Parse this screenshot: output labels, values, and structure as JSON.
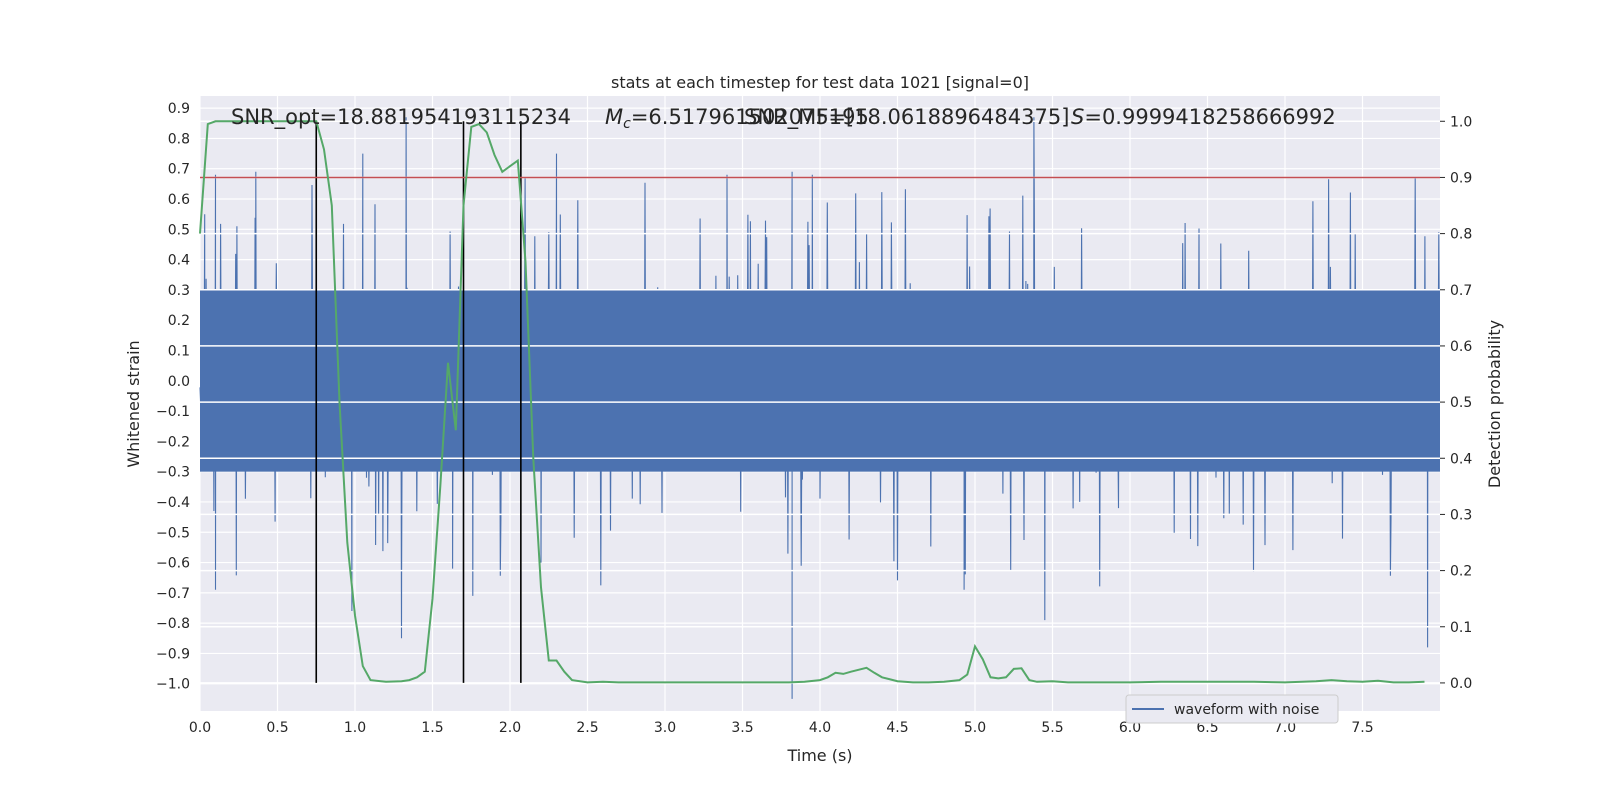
{
  "chart_data": {
    "type": "line",
    "title": "stats at each timestep for test data 1021 [signal=0]",
    "xlabel": "Time (s)",
    "ylabel_left": "Whitened strain",
    "ylabel_right": "Detection probability",
    "xlim": [
      0.0,
      8.0
    ],
    "ylim_left": [
      -1.09,
      0.94
    ],
    "ylim_right": [
      -0.05,
      1.045
    ],
    "x_ticks": [
      "0.0",
      "0.5",
      "1.0",
      "1.5",
      "2.0",
      "2.5",
      "3.0",
      "3.5",
      "4.0",
      "4.5",
      "5.0",
      "5.5",
      "6.0",
      "6.5",
      "7.0",
      "7.5"
    ],
    "y_left_ticks": [
      "0.9",
      "0.8",
      "0.7",
      "0.6",
      "0.5",
      "0.4",
      "0.3",
      "0.2",
      "0.1",
      "0.0",
      "−0.1",
      "−0.2",
      "−0.3",
      "−0.4",
      "−0.5",
      "−0.6",
      "−0.7",
      "−0.8",
      "−0.9",
      "−1.0"
    ],
    "y_right_ticks": [
      "0.0",
      "0.1",
      "0.2",
      "0.3",
      "0.4",
      "0.5",
      "0.6",
      "0.7",
      "0.8",
      "0.9",
      "1.0"
    ],
    "grid": true,
    "legend": {
      "position": "bottom-right",
      "entries": [
        "waveform with noise"
      ]
    },
    "annotations": {
      "snr_opt": "SNR_opt=18.881954193115234",
      "mc_prefix": "M",
      "mc_sub": "c",
      "mc_value": "=6.517961502075195",
      "snr_mf": "SNR_MF=[18.0618896484375]",
      "s_label": "S",
      "s_value": "=0.9999418258666992"
    },
    "threshold": {
      "axis": "right",
      "value": 0.9,
      "color": "#c44e52"
    },
    "vertical_markers": [
      0.75,
      1.7,
      2.07
    ],
    "series": [
      {
        "name": "waveform with noise",
        "axis": "left",
        "color": "#4c72b0",
        "style": "dense-noise",
        "sample_rate_hz": 256,
        "envelope_core": [
          -0.3,
          0.3
        ],
        "envelope_typical": [
          -0.6,
          0.6
        ],
        "spikes": [
          [
            0.03,
            0.55
          ],
          [
            0.1,
            0.68
          ],
          [
            0.36,
            0.69
          ],
          [
            1.05,
            0.75
          ],
          [
            1.33,
            0.87
          ],
          [
            2.3,
            0.75
          ],
          [
            3.4,
            0.68
          ],
          [
            3.82,
            0.69
          ],
          [
            3.95,
            0.68
          ],
          [
            5.38,
            0.87
          ],
          [
            0.1,
            -0.69
          ],
          [
            1.3,
            -0.85
          ],
          [
            1.63,
            -0.62
          ],
          [
            1.76,
            -0.71
          ],
          [
            3.82,
            -1.05
          ],
          [
            4.93,
            -0.69
          ],
          [
            5.45,
            -0.79
          ],
          [
            7.92,
            -0.88
          ],
          [
            0.98,
            -0.76
          ],
          [
            2.2,
            -0.6
          ]
        ]
      },
      {
        "name": "",
        "axis": "right",
        "color": "#55a868",
        "x": [
          0.0,
          0.05,
          0.1,
          0.15,
          0.2,
          0.25,
          0.3,
          0.35,
          0.4,
          0.45,
          0.5,
          0.55,
          0.6,
          0.65,
          0.7,
          0.75,
          0.8,
          0.85,
          0.9,
          0.95,
          1.0,
          1.05,
          1.1,
          1.2,
          1.3,
          1.35,
          1.4,
          1.45,
          1.5,
          1.55,
          1.6,
          1.65,
          1.7,
          1.75,
          1.8,
          1.85,
          1.9,
          1.95,
          2.0,
          2.05,
          2.1,
          2.15,
          2.2,
          2.25,
          2.3,
          2.35,
          2.4,
          2.5,
          2.6,
          2.7,
          2.8,
          2.9,
          3.0,
          3.1,
          3.2,
          3.3,
          3.4,
          3.5,
          3.6,
          3.7,
          3.8,
          3.9,
          4.0,
          4.05,
          4.1,
          4.15,
          4.2,
          4.3,
          4.35,
          4.4,
          4.5,
          4.6,
          4.7,
          4.8,
          4.9,
          4.95,
          5.0,
          5.05,
          5.1,
          5.15,
          5.2,
          5.25,
          5.3,
          5.35,
          5.4,
          5.5,
          5.6,
          5.7,
          5.8,
          5.9,
          6.0,
          6.2,
          6.4,
          6.6,
          6.8,
          7.0,
          7.2,
          7.3,
          7.4,
          7.5,
          7.6,
          7.7,
          7.8,
          7.9
        ],
        "values": [
          0.8,
          0.995,
          1.0,
          1.0,
          1.0,
          1.0,
          1.0,
          1.0,
          1.0,
          1.0,
          1.0,
          1.0,
          1.0,
          1.0,
          1.0,
          1.0,
          0.95,
          0.85,
          0.5,
          0.25,
          0.12,
          0.03,
          0.005,
          0.002,
          0.003,
          0.005,
          0.01,
          0.02,
          0.15,
          0.35,
          0.57,
          0.45,
          0.85,
          0.99,
          0.995,
          0.98,
          0.94,
          0.91,
          0.92,
          0.93,
          0.75,
          0.4,
          0.17,
          0.04,
          0.04,
          0.02,
          0.005,
          0.001,
          0.002,
          0.001,
          0.001,
          0.001,
          0.001,
          0.001,
          0.001,
          0.001,
          0.001,
          0.001,
          0.001,
          0.001,
          0.001,
          0.002,
          0.005,
          0.01,
          0.018,
          0.016,
          0.02,
          0.027,
          0.018,
          0.01,
          0.003,
          0.001,
          0.001,
          0.002,
          0.005,
          0.015,
          0.065,
          0.042,
          0.01,
          0.008,
          0.01,
          0.025,
          0.026,
          0.005,
          0.002,
          0.003,
          0.001,
          0.001,
          0.001,
          0.001,
          0.001,
          0.002,
          0.002,
          0.002,
          0.002,
          0.001,
          0.003,
          0.005,
          0.003,
          0.002,
          0.004,
          0.001,
          0.001,
          0.002
        ]
      }
    ]
  }
}
